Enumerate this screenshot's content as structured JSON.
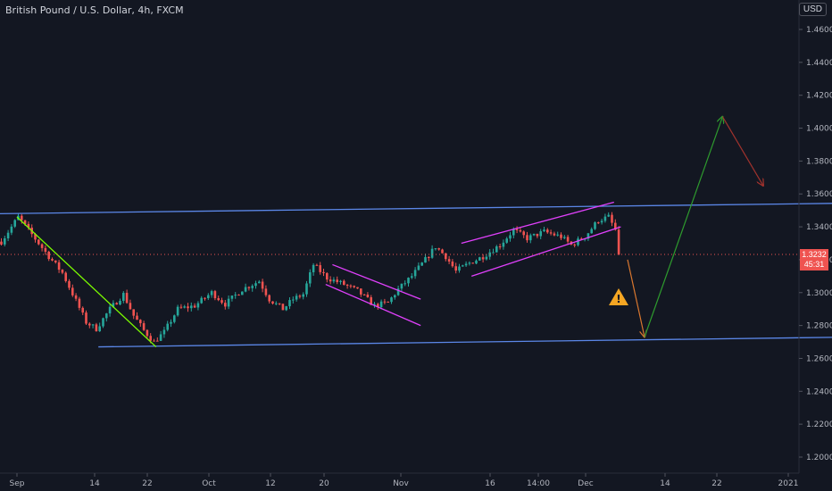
{
  "header": {
    "symbol_title": "British Pound / U.S. Dollar, 4h, FXCM"
  },
  "currency_badge": "USD",
  "last_price": {
    "value": "1.3232",
    "countdown": "45:31"
  },
  "colors": {
    "background": "#131722",
    "bull": "#26a69a",
    "bear": "#ef5350",
    "trendline": "#5b87e8",
    "channel": "#e040fb",
    "down_leg": "#7cfc00",
    "projection_up": "#2e9b2e",
    "projection_down": "#a0322d",
    "warning": "#f5a623"
  },
  "chart_data": {
    "type": "candlestick",
    "interval": "4h",
    "y_ticks": [
      "1.4600",
      "1.4400",
      "1.4200",
      "1.4000",
      "1.3800",
      "1.3600",
      "1.3400",
      "1.3200",
      "1.3000",
      "1.2800",
      "1.2600",
      "1.2400",
      "1.2200",
      "1.2000"
    ],
    "ylim": [
      1.19,
      1.47
    ],
    "x_ticks": [
      "Sep",
      "14",
      "22",
      "Oct",
      "12",
      "20",
      "Nov",
      "16",
      "14:00",
      "Dec",
      "14",
      "22",
      "2021"
    ],
    "path": [
      {
        "t": 0,
        "p": 1.331
      },
      {
        "t": 3,
        "p": 1.34
      },
      {
        "t": 5,
        "p": 1.346
      },
      {
        "t": 8,
        "p": 1.338
      },
      {
        "t": 14,
        "p": 1.322
      },
      {
        "t": 18,
        "p": 1.312
      },
      {
        "t": 22,
        "p": 1.295
      },
      {
        "t": 25,
        "p": 1.282
      },
      {
        "t": 28,
        "p": 1.278
      },
      {
        "t": 32,
        "p": 1.29
      },
      {
        "t": 36,
        "p": 1.299
      },
      {
        "t": 39,
        "p": 1.286
      },
      {
        "t": 42,
        "p": 1.277
      },
      {
        "t": 45,
        "p": 1.27
      },
      {
        "t": 48,
        "p": 1.276
      },
      {
        "t": 52,
        "p": 1.29
      },
      {
        "t": 57,
        "p": 1.292
      },
      {
        "t": 62,
        "p": 1.3
      },
      {
        "t": 66,
        "p": 1.293
      },
      {
        "t": 71,
        "p": 1.302
      },
      {
        "t": 76,
        "p": 1.307
      },
      {
        "t": 79,
        "p": 1.296
      },
      {
        "t": 83,
        "p": 1.29
      },
      {
        "t": 86,
        "p": 1.296
      },
      {
        "t": 89,
        "p": 1.299
      },
      {
        "t": 92,
        "p": 1.317
      },
      {
        "t": 96,
        "p": 1.309
      },
      {
        "t": 101,
        "p": 1.305
      },
      {
        "t": 105,
        "p": 1.301
      },
      {
        "t": 110,
        "p": 1.292
      },
      {
        "t": 114,
        "p": 1.294
      },
      {
        "t": 117,
        "p": 1.302
      },
      {
        "t": 121,
        "p": 1.31
      },
      {
        "t": 125,
        "p": 1.32
      },
      {
        "t": 128,
        "p": 1.328
      },
      {
        "t": 131,
        "p": 1.322
      },
      {
        "t": 134,
        "p": 1.313
      },
      {
        "t": 138,
        "p": 1.318
      },
      {
        "t": 142,
        "p": 1.322
      },
      {
        "t": 147,
        "p": 1.329
      },
      {
        "t": 151,
        "p": 1.338
      },
      {
        "t": 155,
        "p": 1.333
      },
      {
        "t": 160,
        "p": 1.337
      },
      {
        "t": 165,
        "p": 1.334
      },
      {
        "t": 168,
        "p": 1.329
      },
      {
        "t": 172,
        "p": 1.334
      },
      {
        "t": 176,
        "p": 1.344
      },
      {
        "t": 179,
        "p": 1.346
      },
      {
        "t": 181,
        "p": 1.338
      },
      {
        "t": 182,
        "p": 1.323
      }
    ],
    "current_price": 1.3232
  },
  "annotations": {
    "warning_symbol": "⚠",
    "resistance_line": {
      "t0": 0,
      "p0": 1.348,
      "t1": 275,
      "p1": 1.355
    },
    "support_line": {
      "t0": 29,
      "p0": 1.267,
      "t1": 290,
      "p1": 1.274
    },
    "down_leg_line": {
      "t0": 5,
      "p0": 1.346,
      "t1": 46,
      "p1": 1.267
    },
    "flag_channel": {
      "upper": {
        "t0": 98,
        "p0": 1.317,
        "t1": 124,
        "p1": 1.296
      },
      "lower": {
        "t0": 96,
        "p0": 1.305,
        "t1": 124,
        "p1": 1.28
      }
    },
    "rising_channel": {
      "upper": {
        "t0": 136,
        "p0": 1.33,
        "t1": 181,
        "p1": 1.355
      },
      "lower": {
        "t0": 139,
        "p0": 1.31,
        "t1": 183,
        "p1": 1.34
      }
    },
    "projection": [
      {
        "t": 185,
        "p": 1.32
      },
      {
        "t": 190,
        "p": 1.273
      },
      {
        "t": 192,
        "p": 1.274
      },
      {
        "t": 213,
        "p": 1.407
      },
      {
        "t": 225,
        "p": 1.365
      }
    ]
  }
}
